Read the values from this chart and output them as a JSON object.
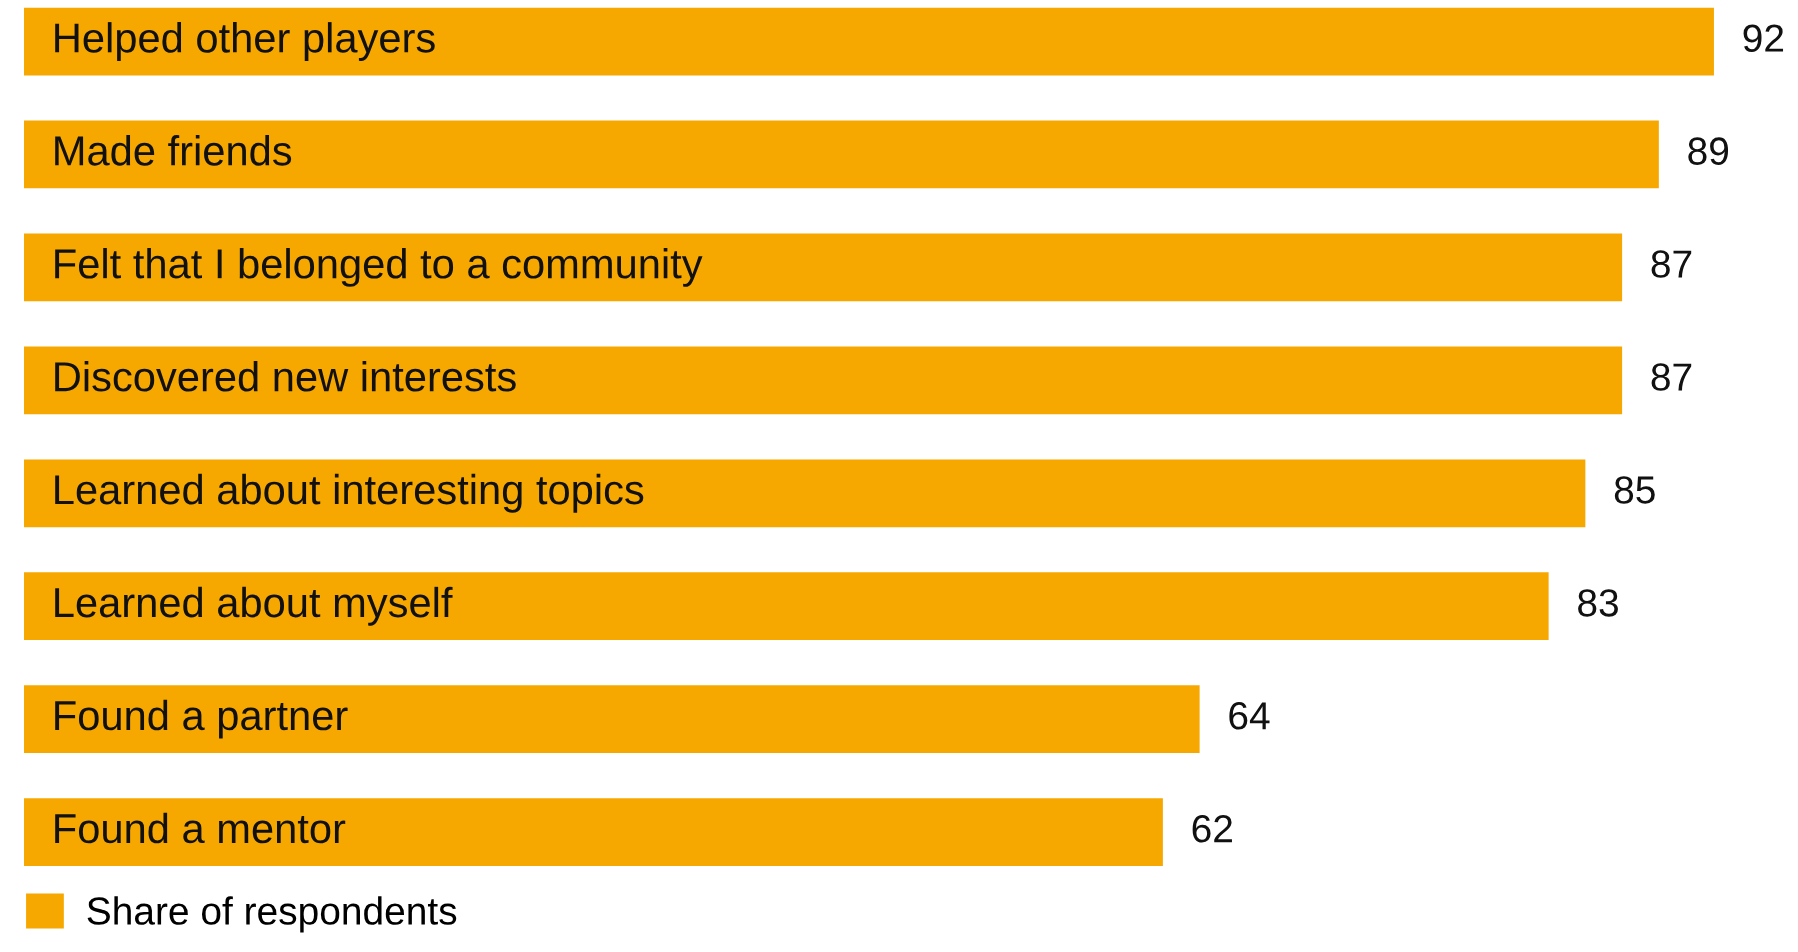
{
  "chart_data": {
    "type": "bar",
    "orientation": "horizontal",
    "categories": [
      "Helped other players",
      "Made friends",
      "Felt that I belonged to a community",
      "Discovered new interests",
      "Learned about interesting topics",
      "Learned about myself",
      "Found a partner",
      "Found a mentor"
    ],
    "series": [
      {
        "name": "Share of respondents",
        "color": "#f7a800",
        "values": [
          92,
          89,
          87,
          87,
          85,
          83,
          64,
          62
        ]
      }
    ],
    "data_labels": true,
    "legend": "bottom"
  }
}
